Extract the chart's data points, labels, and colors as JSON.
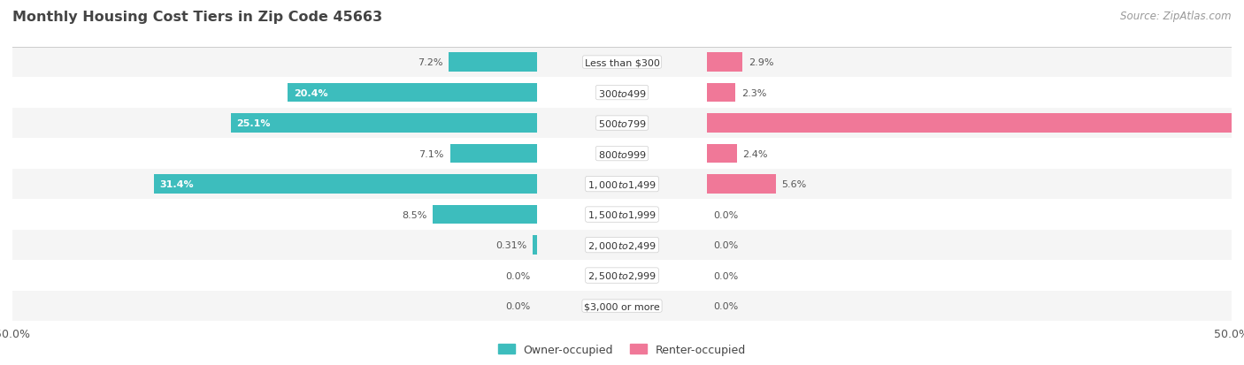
{
  "title": "Monthly Housing Cost Tiers in Zip Code 45663",
  "source": "Source: ZipAtlas.com",
  "categories": [
    "Less than $300",
    "$300 to $499",
    "$500 to $799",
    "$800 to $999",
    "$1,000 to $1,499",
    "$1,500 to $1,999",
    "$2,000 to $2,499",
    "$2,500 to $2,999",
    "$3,000 or more"
  ],
  "owner_values": [
    7.2,
    20.4,
    25.1,
    7.1,
    31.4,
    8.5,
    0.31,
    0.0,
    0.0
  ],
  "renter_values": [
    2.9,
    2.3,
    49.9,
    2.4,
    5.6,
    0.0,
    0.0,
    0.0,
    0.0
  ],
  "owner_color": "#3dbdbd",
  "renter_color": "#f07898",
  "bar_height": 0.62,
  "max_value": 50.0,
  "bg_row_colors": [
    "#f5f5f5",
    "#ffffff"
  ],
  "title_color": "#444444",
  "source_color": "#999999",
  "legend_label_owner": "Owner-occupied",
  "legend_label_renter": "Renter-occupied"
}
